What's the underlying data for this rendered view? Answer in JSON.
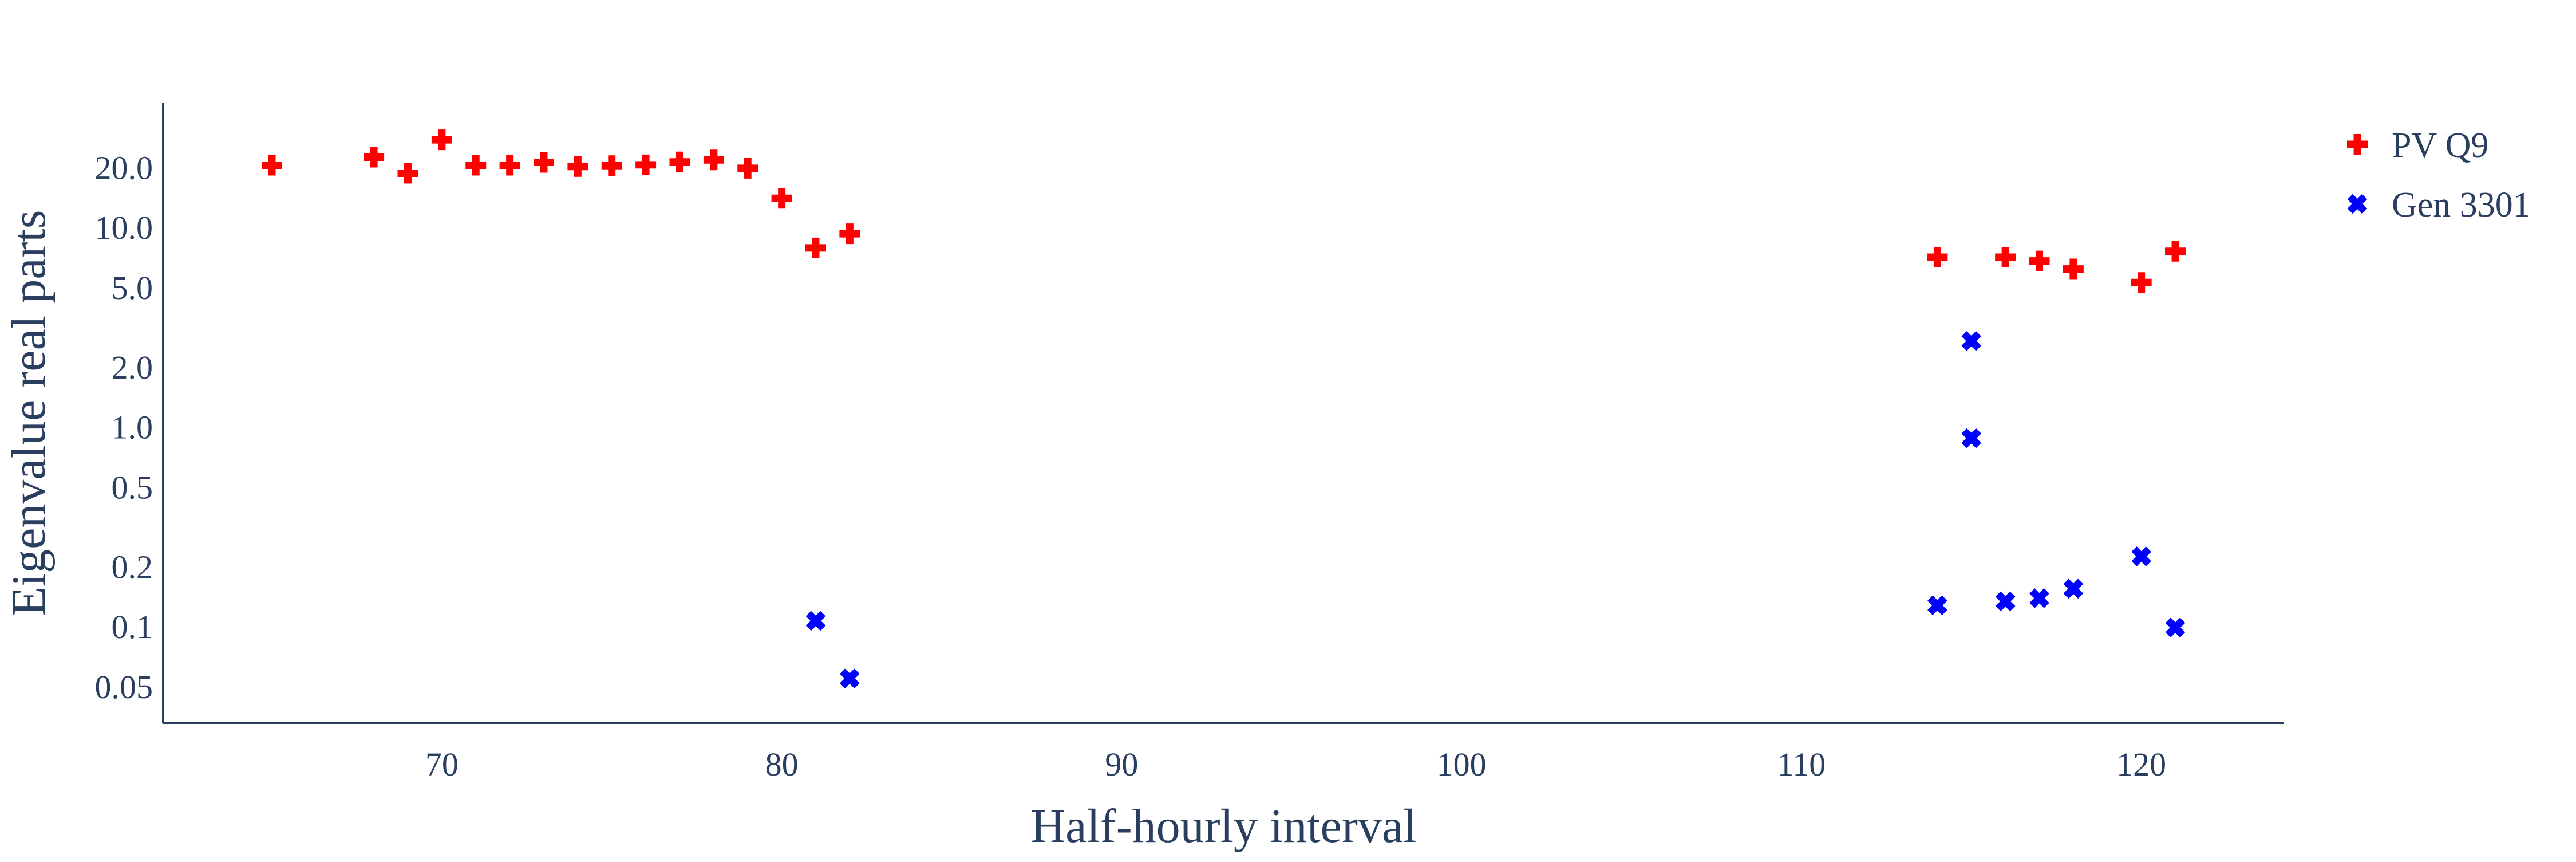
{
  "chart_data": {
    "type": "scatter",
    "xlabel": "Half-hourly interval",
    "ylabel": "Eigenvalue real parts",
    "xlim": [
      61.8,
      124.2
    ],
    "ylim": [
      0.033,
      42
    ],
    "yscale": "log",
    "x_ticks": [
      70,
      80,
      90,
      100,
      110,
      120
    ],
    "y_ticks": [
      {
        "value": 0.05,
        "label": "0.05"
      },
      {
        "value": 0.1,
        "label": "0.1"
      },
      {
        "value": 0.2,
        "label": "0.2"
      },
      {
        "value": 0.5,
        "label": "0.5"
      },
      {
        "value": 1,
        "label": "1.0"
      },
      {
        "value": 2,
        "label": "2.0"
      },
      {
        "value": 5,
        "label": "5.0"
      },
      {
        "value": 10,
        "label": "10.0"
      },
      {
        "value": 20,
        "label": "20.0"
      }
    ],
    "grid": false,
    "legend_position": "top-right",
    "series": [
      {
        "name": "PV Q9",
        "color": "#ff0000",
        "marker": "cross",
        "points": [
          {
            "x": 65,
            "y": 20.5
          },
          {
            "x": 68,
            "y": 22.5
          },
          {
            "x": 69,
            "y": 18.7
          },
          {
            "x": 70,
            "y": 27.5
          },
          {
            "x": 71,
            "y": 20.5
          },
          {
            "x": 72,
            "y": 20.5
          },
          {
            "x": 73,
            "y": 21.2
          },
          {
            "x": 74,
            "y": 20.2
          },
          {
            "x": 75,
            "y": 20.4
          },
          {
            "x": 76,
            "y": 20.6
          },
          {
            "x": 77,
            "y": 21.3
          },
          {
            "x": 78,
            "y": 21.8
          },
          {
            "x": 79,
            "y": 19.8
          },
          {
            "x": 80,
            "y": 14.0
          },
          {
            "x": 81,
            "y": 7.9
          },
          {
            "x": 82,
            "y": 9.3
          },
          {
            "x": 114,
            "y": 7.1
          },
          {
            "x": 116,
            "y": 7.1
          },
          {
            "x": 117,
            "y": 6.8
          },
          {
            "x": 118,
            "y": 6.2
          },
          {
            "x": 120,
            "y": 5.3
          },
          {
            "x": 121,
            "y": 7.6
          }
        ]
      },
      {
        "name": "Gen 3301",
        "color": "#0000ff",
        "marker": "x",
        "points": [
          {
            "x": 81,
            "y": 0.107
          },
          {
            "x": 82,
            "y": 0.055
          },
          {
            "x": 114,
            "y": 0.128
          },
          {
            "x": 115,
            "y": 2.7
          },
          {
            "x": 115,
            "y": 0.88
          },
          {
            "x": 116,
            "y": 0.134
          },
          {
            "x": 117,
            "y": 0.139
          },
          {
            "x": 118,
            "y": 0.155
          },
          {
            "x": 120,
            "y": 0.225
          },
          {
            "x": 121,
            "y": 0.099
          }
        ]
      }
    ]
  }
}
